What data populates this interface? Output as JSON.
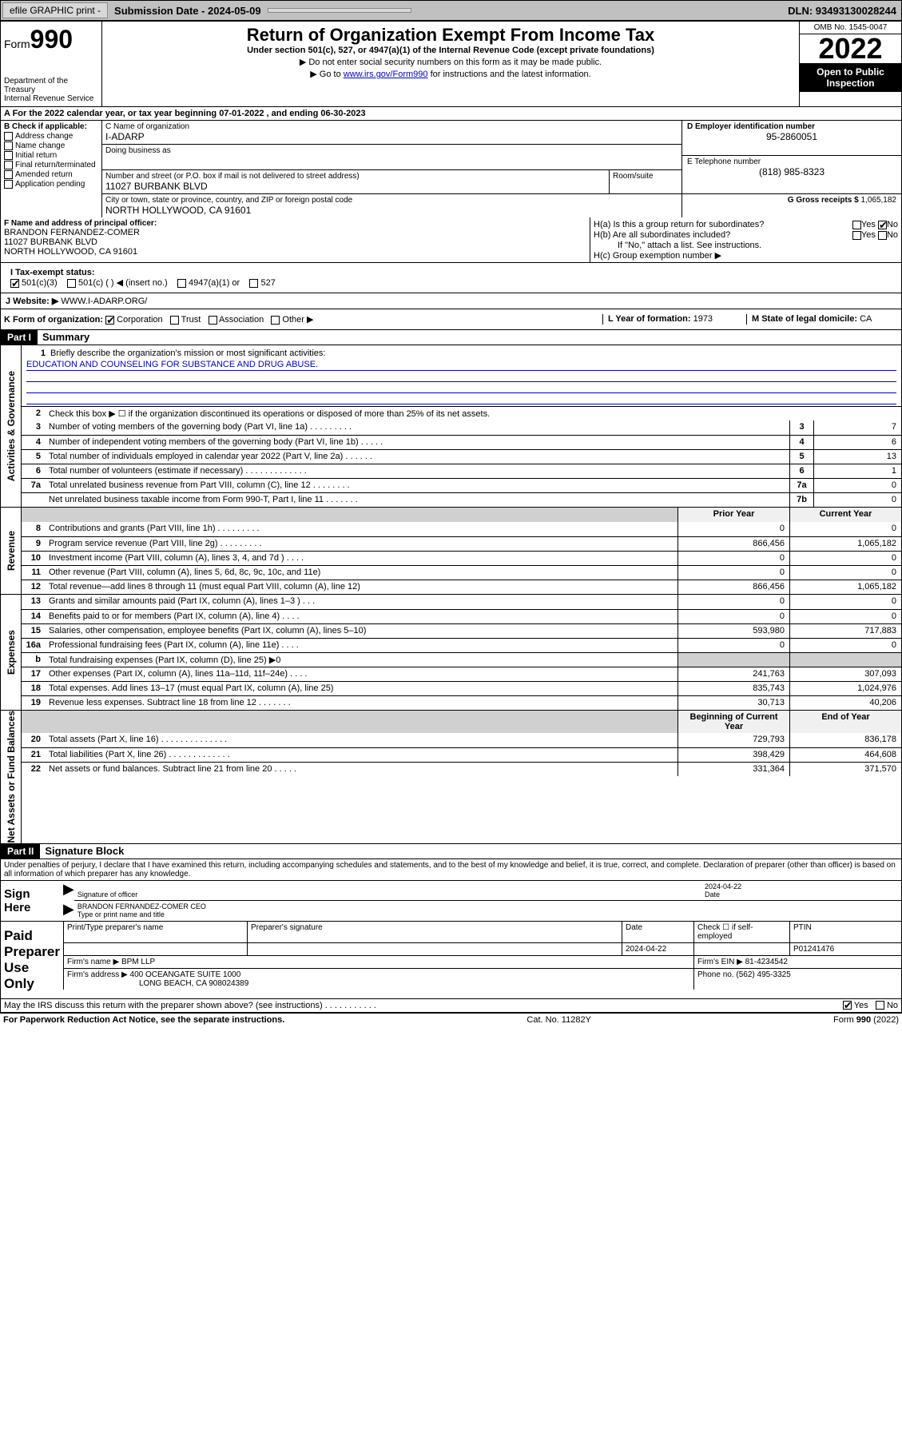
{
  "topbar": {
    "efile": "efile GRAPHIC print -",
    "submission_label": "Submission Date - 2024-05-09",
    "dln": "DLN: 93493130028244"
  },
  "header": {
    "form_word": "Form",
    "form_num": "990",
    "dept": "Department of the Treasury",
    "irs": "Internal Revenue Service",
    "title": "Return of Organization Exempt From Income Tax",
    "subtitle": "Under section 501(c), 527, or 4947(a)(1) of the Internal Revenue Code (except private foundations)",
    "note1": "▶ Do not enter social security numbers on this form as it may be made public.",
    "note2_pre": "▶ Go to ",
    "note2_link": "www.irs.gov/Form990",
    "note2_post": " for instructions and the latest information.",
    "omb": "OMB No. 1545-0047",
    "year": "2022",
    "open_pub": "Open to Public Inspection"
  },
  "row_a": "A For the 2022 calendar year, or tax year beginning 07-01-2022  , and ending 06-30-2023",
  "sec_b": {
    "label": "B Check if applicable:",
    "items": [
      "Address change",
      "Name change",
      "Initial return",
      "Final return/terminated",
      "Amended return",
      "Application pending"
    ]
  },
  "sec_c": {
    "name_label": "C Name of organization",
    "name": "I-ADARP",
    "dba_label": "Doing business as",
    "dba": "",
    "addr_label": "Number and street (or P.O. box if mail is not delivered to street address)",
    "room_label": "Room/suite",
    "addr": "11027 BURBANK BLVD",
    "city_label": "City or town, state or province, country, and ZIP or foreign postal code",
    "city": "NORTH HOLLYWOOD, CA  91601"
  },
  "sec_d": {
    "label": "D Employer identification number",
    "val": "95-2860051"
  },
  "sec_e": {
    "label": "E Telephone number",
    "val": "(818) 985-8323"
  },
  "sec_g": {
    "label": "G Gross receipts $",
    "val": "1,065,182"
  },
  "sec_f": {
    "label": "F Name and address of principal officer:",
    "name": "BRANDON FERNANDEZ-COMER",
    "addr1": "11027 BURBANK BLVD",
    "addr2": "NORTH HOLLYWOOD, CA  91601"
  },
  "sec_h": {
    "a": "H(a)  Is this a group return for subordinates?",
    "b": "H(b)  Are all subordinates included?",
    "b_note": "If \"No,\" attach a list. See instructions.",
    "c": "H(c)  Group exemption number ▶",
    "yes": "Yes",
    "no": "No"
  },
  "sec_i": {
    "label": "I  Tax-exempt status:",
    "opts": [
      "501(c)(3)",
      "501(c) (   ) ◀ (insert no.)",
      "4947(a)(1) or",
      "527"
    ]
  },
  "sec_j": {
    "label": "J  Website: ▶",
    "val": "WWW.I-ADARP.ORG/"
  },
  "sec_k": {
    "label": "K Form of organization:",
    "opts": [
      "Corporation",
      "Trust",
      "Association",
      "Other ▶"
    ]
  },
  "sec_l": {
    "label": "L Year of formation:",
    "val": "1973"
  },
  "sec_m": {
    "label": "M State of legal domicile:",
    "val": "CA"
  },
  "part1": {
    "hd": "Part I",
    "title": "Summary"
  },
  "summary": {
    "l1": "Briefly describe the organization's mission or most significant activities:",
    "l1_val": "EDUCATION AND COUNSELING FOR SUBSTANCE AND DRUG ABUSE.",
    "l2": "Check this box ▶ ☐  if the organization discontinued its operations or disposed of more than 25% of its net assets.",
    "rows_gov": [
      {
        "n": "3",
        "t": "Number of voting members of the governing body (Part VI, line 1a)   .    .    .    .    .    .    .    .    .",
        "b": "3",
        "v": "7"
      },
      {
        "n": "4",
        "t": "Number of independent voting members of the governing body (Part VI, line 1b)   .    .    .    .    .",
        "b": "4",
        "v": "6"
      },
      {
        "n": "5",
        "t": "Total number of individuals employed in calendar year 2022 (Part V, line 2a)  .    .    .    .    .    .",
        "b": "5",
        "v": "13"
      },
      {
        "n": "6",
        "t": "Total number of volunteers (estimate if necessary)   .    .    .    .    .    .    .    .    .    .    .    .    .",
        "b": "6",
        "v": "1"
      },
      {
        "n": "7a",
        "t": "Total unrelated business revenue from Part VIII, column (C), line 12  .    .    .    .    .    .    .    .",
        "b": "7a",
        "v": "0"
      },
      {
        "n": "",
        "t": "Net unrelated business taxable income from Form 990-T, Part I, line 11   .    .    .    .    .    .    .",
        "b": "7b",
        "v": "0"
      }
    ],
    "col_hd": {
      "prior": "Prior Year",
      "current": "Current Year"
    },
    "rows_rev": [
      {
        "n": "8",
        "t": "Contributions and grants (Part VIII, line 1h)   .    .    .    .    .    .    .    .    .",
        "p": "0",
        "c": "0"
      },
      {
        "n": "9",
        "t": "Program service revenue (Part VIII, line 2g)   .    .    .    .    .    .    .    .    .",
        "p": "866,456",
        "c": "1,065,182"
      },
      {
        "n": "10",
        "t": "Investment income (Part VIII, column (A), lines 3, 4, and 7d )   .    .    .    .",
        "p": "0",
        "c": "0"
      },
      {
        "n": "11",
        "t": "Other revenue (Part VIII, column (A), lines 5, 6d, 8c, 9c, 10c, and 11e)",
        "p": "0",
        "c": "0"
      },
      {
        "n": "12",
        "t": "Total revenue—add lines 8 through 11 (must equal Part VIII, column (A), line 12)",
        "p": "866,456",
        "c": "1,065,182"
      }
    ],
    "rows_exp": [
      {
        "n": "13",
        "t": "Grants and similar amounts paid (Part IX, column (A), lines 1–3 )   .    .    .",
        "p": "0",
        "c": "0"
      },
      {
        "n": "14",
        "t": "Benefits paid to or for members (Part IX, column (A), line 4)   .    .    .    .",
        "p": "0",
        "c": "0"
      },
      {
        "n": "15",
        "t": "Salaries, other compensation, employee benefits (Part IX, column (A), lines 5–10)",
        "p": "593,980",
        "c": "717,883"
      },
      {
        "n": "16a",
        "t": "Professional fundraising fees (Part IX, column (A), line 11e)   .    .    .    .",
        "p": "0",
        "c": "0"
      },
      {
        "n": "b",
        "t": "Total fundraising expenses (Part IX, column (D), line 25) ▶0",
        "p": "",
        "c": "",
        "shaded": true
      },
      {
        "n": "17",
        "t": "Other expenses (Part IX, column (A), lines 11a–11d, 11f–24e)   .    .    .    .",
        "p": "241,763",
        "c": "307,093"
      },
      {
        "n": "18",
        "t": "Total expenses. Add lines 13–17 (must equal Part IX, column (A), line 25)",
        "p": "835,743",
        "c": "1,024,976"
      },
      {
        "n": "19",
        "t": "Revenue less expenses. Subtract line 18 from line 12  .    .    .    .    .    .    .",
        "p": "30,713",
        "c": "40,206"
      }
    ],
    "col_hd2": {
      "beg": "Beginning of Current Year",
      "end": "End of Year"
    },
    "rows_net": [
      {
        "n": "20",
        "t": "Total assets (Part X, line 16)   .    .    .    .    .    .    .    .    .    .    .    .    .    .",
        "p": "729,793",
        "c": "836,178"
      },
      {
        "n": "21",
        "t": "Total liabilities (Part X, line 26)   .    .    .    .    .    .    .    .    .    .    .    .    .",
        "p": "398,429",
        "c": "464,608"
      },
      {
        "n": "22",
        "t": "Net assets or fund balances. Subtract line 21 from line 20   .    .    .    .    .",
        "p": "331,364",
        "c": "371,570"
      }
    ]
  },
  "side_labels": {
    "gov": "Activities & Governance",
    "rev": "Revenue",
    "exp": "Expenses",
    "net": "Net Assets or Fund Balances"
  },
  "part2": {
    "hd": "Part II",
    "title": "Signature Block"
  },
  "sig": {
    "decl": "Under penalties of perjury, I declare that I have examined this return, including accompanying schedules and statements, and to the best of my knowledge and belief, it is true, correct, and complete. Declaration of preparer (other than officer) is based on all information of which preparer has any knowledge.",
    "sign_here": "Sign Here",
    "sig_officer": "Signature of officer",
    "date_label": "Date",
    "date": "2024-04-22",
    "name_title": "BRANDON FERNANDEZ-COMER CEO",
    "type_name": "Type or print name and title"
  },
  "paid": {
    "label": "Paid Preparer Use Only",
    "hdrs": [
      "Print/Type preparer's name",
      "Preparer's signature",
      "Date",
      "Check ☐ if self-employed",
      "PTIN"
    ],
    "row1": [
      "",
      "",
      "2024-04-22",
      "",
      "P01241476"
    ],
    "firm_name_lbl": "Firm's name   ▶",
    "firm_name": "BPM LLP",
    "firm_ein_lbl": "Firm's EIN ▶",
    "firm_ein": "81-4234542",
    "firm_addr_lbl": "Firm's address ▶",
    "firm_addr1": "400 OCEANGATE SUITE 1000",
    "firm_addr2": "LONG BEACH, CA  908024389",
    "phone_lbl": "Phone no.",
    "phone": "(562) 495-3325"
  },
  "discuss": {
    "q": "May the IRS discuss this return with the preparer shown above? (see instructions)   .    .    .    .    .    .    .    .    .    .    .",
    "yes": "Yes",
    "no": "No"
  },
  "footer": {
    "left": "For Paperwork Reduction Act Notice, see the separate instructions.",
    "mid": "Cat. No. 11282Y",
    "right": "Form 990 (2022)"
  }
}
